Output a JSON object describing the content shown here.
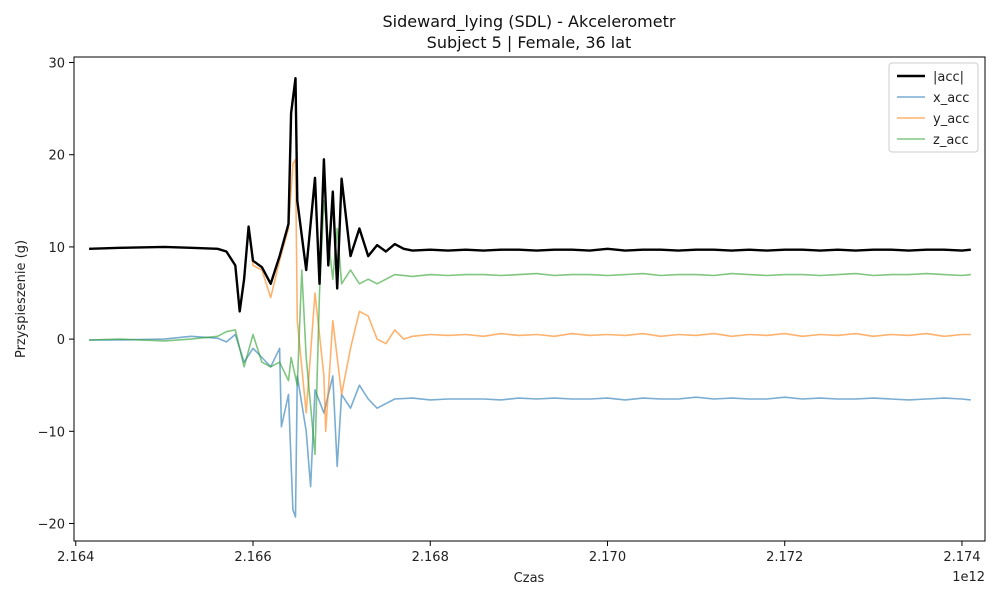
{
  "chart_data": {
    "type": "line",
    "title": "Sideward_lying (SDL) - Akcelerometr",
    "subtitle": "Subject 5 | Female, 36 lat",
    "xlabel": "Czas",
    "ylabel": "Przyspieszenie (g)",
    "x_offset_label": "1e12",
    "xlim": [
      2.16398,
      2.17426
    ],
    "ylim": [
      -21.9,
      30.6
    ],
    "x_ticks": [
      2.164,
      2.166,
      2.168,
      2.17,
      2.172,
      2.174
    ],
    "x_tick_labels": [
      "2.164",
      "2.166",
      "2.168",
      "2.170",
      "2.172",
      "2.174"
    ],
    "y_ticks": [
      -20,
      -10,
      0,
      10,
      20,
      30
    ],
    "y_tick_labels": [
      "−20",
      "−10",
      "0",
      "10",
      "20",
      "30"
    ],
    "grid": false,
    "legend_position": "top-right",
    "series": [
      {
        "name": "|acc|",
        "color": "#000000",
        "x": [
          2.16415,
          2.1645,
          2.165,
          2.1653,
          2.1656,
          2.1657,
          2.1658,
          2.16585,
          2.1659,
          2.16595,
          2.166,
          2.1661,
          2.1662,
          2.1663,
          2.1664,
          2.16643,
          2.16648,
          2.1665,
          2.1666,
          2.1667,
          2.16675,
          2.1668,
          2.16685,
          2.1669,
          2.16695,
          2.167,
          2.1671,
          2.1672,
          2.1673,
          2.1674,
          2.1675,
          2.1676,
          2.1677,
          2.1678,
          2.168,
          2.1682,
          2.1684,
          2.1686,
          2.1688,
          2.169,
          2.1692,
          2.1694,
          2.1696,
          2.1698,
          2.17,
          2.1702,
          2.1704,
          2.1706,
          2.1708,
          2.171,
          2.1712,
          2.1714,
          2.1716,
          2.1718,
          2.172,
          2.1722,
          2.1724,
          2.1726,
          2.1728,
          2.173,
          2.1732,
          2.1734,
          2.1736,
          2.1738,
          2.174,
          2.1741
        ],
        "y": [
          9.8,
          9.9,
          10.0,
          9.9,
          9.8,
          9.5,
          8.0,
          3.0,
          6.5,
          12.2,
          8.5,
          7.8,
          6.0,
          9.0,
          12.5,
          24.5,
          28.3,
          15.0,
          7.5,
          17.5,
          6.0,
          19.5,
          8.0,
          16.0,
          5.5,
          17.4,
          9.0,
          12.0,
          9.0,
          10.2,
          9.5,
          10.3,
          9.8,
          9.6,
          9.7,
          9.6,
          9.7,
          9.6,
          9.7,
          9.7,
          9.6,
          9.7,
          9.7,
          9.6,
          9.8,
          9.6,
          9.7,
          9.7,
          9.6,
          9.7,
          9.7,
          9.6,
          9.7,
          9.6,
          9.7,
          9.7,
          9.6,
          9.7,
          9.6,
          9.7,
          9.7,
          9.6,
          9.7,
          9.7,
          9.6,
          9.7
        ]
      },
      {
        "name": "x_acc",
        "color": "#1f77b4",
        "x": [
          2.16415,
          2.1645,
          2.165,
          2.1653,
          2.1656,
          2.1657,
          2.1658,
          2.1659,
          2.166,
          2.1661,
          2.1662,
          2.1663,
          2.16632,
          2.1664,
          2.16645,
          2.16648,
          2.1665,
          2.1666,
          2.16665,
          2.1667,
          2.1668,
          2.1669,
          2.16695,
          2.167,
          2.1671,
          2.1672,
          2.1673,
          2.1674,
          2.1675,
          2.1676,
          2.1678,
          2.168,
          2.1682,
          2.1684,
          2.1686,
          2.1688,
          2.169,
          2.1692,
          2.1694,
          2.1696,
          2.1698,
          2.17,
          2.1702,
          2.1704,
          2.1706,
          2.1708,
          2.171,
          2.1712,
          2.1714,
          2.1716,
          2.1718,
          2.172,
          2.1722,
          2.1724,
          2.1726,
          2.1728,
          2.173,
          2.1732,
          2.1734,
          2.1736,
          2.1738,
          2.174,
          2.1741
        ],
        "y": [
          -0.1,
          -0.1,
          0.0,
          0.3,
          0.1,
          -0.3,
          0.5,
          -2.5,
          -1.0,
          -2.0,
          -3.0,
          -1.0,
          -9.5,
          -6.0,
          -18.5,
          -19.3,
          -4.0,
          -10.0,
          -16.0,
          -5.5,
          -8.0,
          -4.0,
          -13.8,
          -6.0,
          -7.5,
          -5.0,
          -6.5,
          -7.5,
          -7.0,
          -6.5,
          -6.4,
          -6.6,
          -6.5,
          -6.5,
          -6.5,
          -6.6,
          -6.4,
          -6.5,
          -6.4,
          -6.5,
          -6.5,
          -6.4,
          -6.6,
          -6.4,
          -6.5,
          -6.5,
          -6.3,
          -6.5,
          -6.4,
          -6.5,
          -6.5,
          -6.3,
          -6.5,
          -6.4,
          -6.5,
          -6.5,
          -6.4,
          -6.5,
          -6.6,
          -6.5,
          -6.4,
          -6.5,
          -6.6
        ]
      },
      {
        "name": "y_acc",
        "color": "#ff7f0e",
        "x": [
          2.16415,
          2.1645,
          2.165,
          2.1653,
          2.1656,
          2.1657,
          2.1658,
          2.16585,
          2.1659,
          2.16595,
          2.166,
          2.1661,
          2.1662,
          2.1663,
          2.1664,
          2.16645,
          2.16648,
          2.1665,
          2.1666,
          2.1667,
          2.1668,
          2.16682,
          2.1669,
          2.167,
          2.1671,
          2.1672,
          2.1673,
          2.1674,
          2.1675,
          2.1676,
          2.1677,
          2.1678,
          2.168,
          2.1682,
          2.1684,
          2.1686,
          2.1688,
          2.169,
          2.1692,
          2.1694,
          2.1696,
          2.1698,
          2.17,
          2.1702,
          2.1704,
          2.1706,
          2.1708,
          2.171,
          2.1712,
          2.1714,
          2.1716,
          2.1718,
          2.172,
          2.1722,
          2.1724,
          2.1726,
          2.1728,
          2.173,
          2.1732,
          2.1734,
          2.1736,
          2.1738,
          2.174,
          2.1741
        ],
        "y": [
          9.8,
          9.9,
          10.0,
          9.9,
          9.8,
          9.5,
          8.0,
          3.0,
          6.5,
          12.0,
          8.0,
          7.5,
          4.5,
          8.5,
          12.0,
          19.0,
          19.5,
          2.0,
          -8.0,
          5.0,
          -4.0,
          -10.0,
          2.0,
          -6.0,
          -1.0,
          3.0,
          2.5,
          0.0,
          -0.5,
          1.0,
          0.0,
          0.3,
          0.5,
          0.4,
          0.5,
          0.3,
          0.6,
          0.4,
          0.5,
          0.3,
          0.6,
          0.4,
          0.5,
          0.4,
          0.6,
          0.3,
          0.5,
          0.4,
          0.6,
          0.3,
          0.5,
          0.4,
          0.6,
          0.3,
          0.5,
          0.4,
          0.6,
          0.3,
          0.5,
          0.4,
          0.6,
          0.3,
          0.5,
          0.5
        ]
      },
      {
        "name": "z_acc",
        "color": "#2ca02c",
        "x": [
          2.16415,
          2.1645,
          2.165,
          2.1653,
          2.1656,
          2.1657,
          2.1658,
          2.1659,
          2.166,
          2.1661,
          2.1662,
          2.1663,
          2.1664,
          2.16643,
          2.1665,
          2.16655,
          2.1666,
          2.1667,
          2.16675,
          2.1668,
          2.1669,
          2.16695,
          2.167,
          2.1671,
          2.1672,
          2.1673,
          2.1674,
          2.1675,
          2.1676,
          2.1678,
          2.168,
          2.1682,
          2.1684,
          2.1686,
          2.1688,
          2.169,
          2.1692,
          2.1694,
          2.1696,
          2.1698,
          2.17,
          2.1702,
          2.1704,
          2.1706,
          2.1708,
          2.171,
          2.1712,
          2.1714,
          2.1716,
          2.1718,
          2.172,
          2.1722,
          2.1724,
          2.1726,
          2.1728,
          2.173,
          2.1732,
          2.1734,
          2.1736,
          2.1738,
          2.174,
          2.1741
        ],
        "y": [
          -0.1,
          0.0,
          -0.2,
          0.0,
          0.3,
          0.8,
          1.0,
          -3.0,
          0.5,
          -2.5,
          -3.0,
          -2.5,
          -4.5,
          -2.0,
          -5.0,
          7.5,
          -2.0,
          -12.5,
          5.0,
          15.0,
          6.5,
          12.0,
          6.0,
          7.5,
          6.0,
          6.5,
          6.0,
          6.5,
          7.0,
          6.8,
          7.0,
          6.9,
          7.0,
          7.0,
          6.9,
          7.0,
          7.1,
          6.9,
          7.0,
          7.0,
          6.9,
          7.0,
          7.1,
          6.9,
          7.0,
          7.0,
          6.9,
          7.1,
          7.0,
          6.9,
          7.0,
          7.0,
          6.9,
          7.0,
          7.1,
          6.9,
          7.0,
          7.0,
          7.1,
          7.0,
          6.9,
          7.0
        ]
      }
    ]
  }
}
